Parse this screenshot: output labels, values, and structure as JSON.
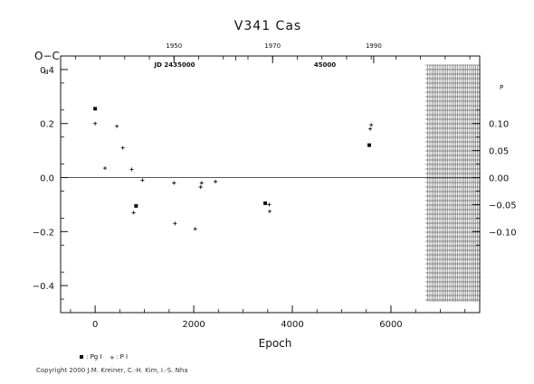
{
  "chart_data": {
    "type": "scatter",
    "title": "V341 Cas",
    "xlabel": "Epoch",
    "ylabel": "O−C",
    "left_unit": "d",
    "right_unit": "P",
    "xlim": [
      -700,
      7800
    ],
    "ylim": [
      -0.5,
      0.45
    ],
    "x_ticks": [
      0,
      2000,
      4000,
      6000
    ],
    "y_ticks": [
      "0.4",
      "0.2",
      "0.0",
      "−0.2",
      "−0.4"
    ],
    "y_tick_values": [
      0.4,
      0.2,
      0.0,
      -0.2,
      -0.4
    ],
    "right_ticks": [
      0.1,
      0.05,
      0.0,
      -0.05,
      -0.1
    ],
    "right_tick_labels": [
      "0.10",
      "0.05",
      "0.00",
      "−0.05",
      "−0.10"
    ],
    "right_scale": 0.5,
    "top_ticks": [
      1950,
      1970,
      1990
    ],
    "top_positions_epoch": [
      1600,
      3600,
      5650
    ],
    "jd_label": "JD 2435000",
    "jd2_label": "45000",
    "grid": false,
    "legend": [
      {
        "marker": "square",
        "label": ": Pg I"
      },
      {
        "marker": "plus",
        "label": ": P I"
      }
    ],
    "series": [
      {
        "name": "Pg I",
        "marker": "square",
        "points": [
          [
            0,
            0.255
          ],
          [
            830,
            -0.105
          ],
          [
            3450,
            -0.095
          ],
          [
            5560,
            0.12
          ]
        ]
      },
      {
        "name": "P I",
        "marker": "plus",
        "points": [
          [
            0,
            0.2
          ],
          [
            200,
            0.035
          ],
          [
            440,
            0.19
          ],
          [
            560,
            0.11
          ],
          [
            740,
            0.03
          ],
          [
            780,
            -0.13
          ],
          [
            960,
            -0.01
          ],
          [
            1600,
            -0.02
          ],
          [
            1620,
            -0.17
          ],
          [
            2030,
            -0.19
          ],
          [
            2140,
            -0.035
          ],
          [
            2160,
            -0.02
          ],
          [
            2440,
            -0.015
          ],
          [
            3530,
            -0.1
          ],
          [
            3540,
            -0.125
          ],
          [
            5580,
            0.18
          ],
          [
            5600,
            0.195
          ]
        ]
      }
    ],
    "hatched_region_x": [
      6750,
      7800
    ]
  },
  "copyright": "Copyright 2000 J.M. Kreiner, C.-H. Kim, I.-S. Nha"
}
